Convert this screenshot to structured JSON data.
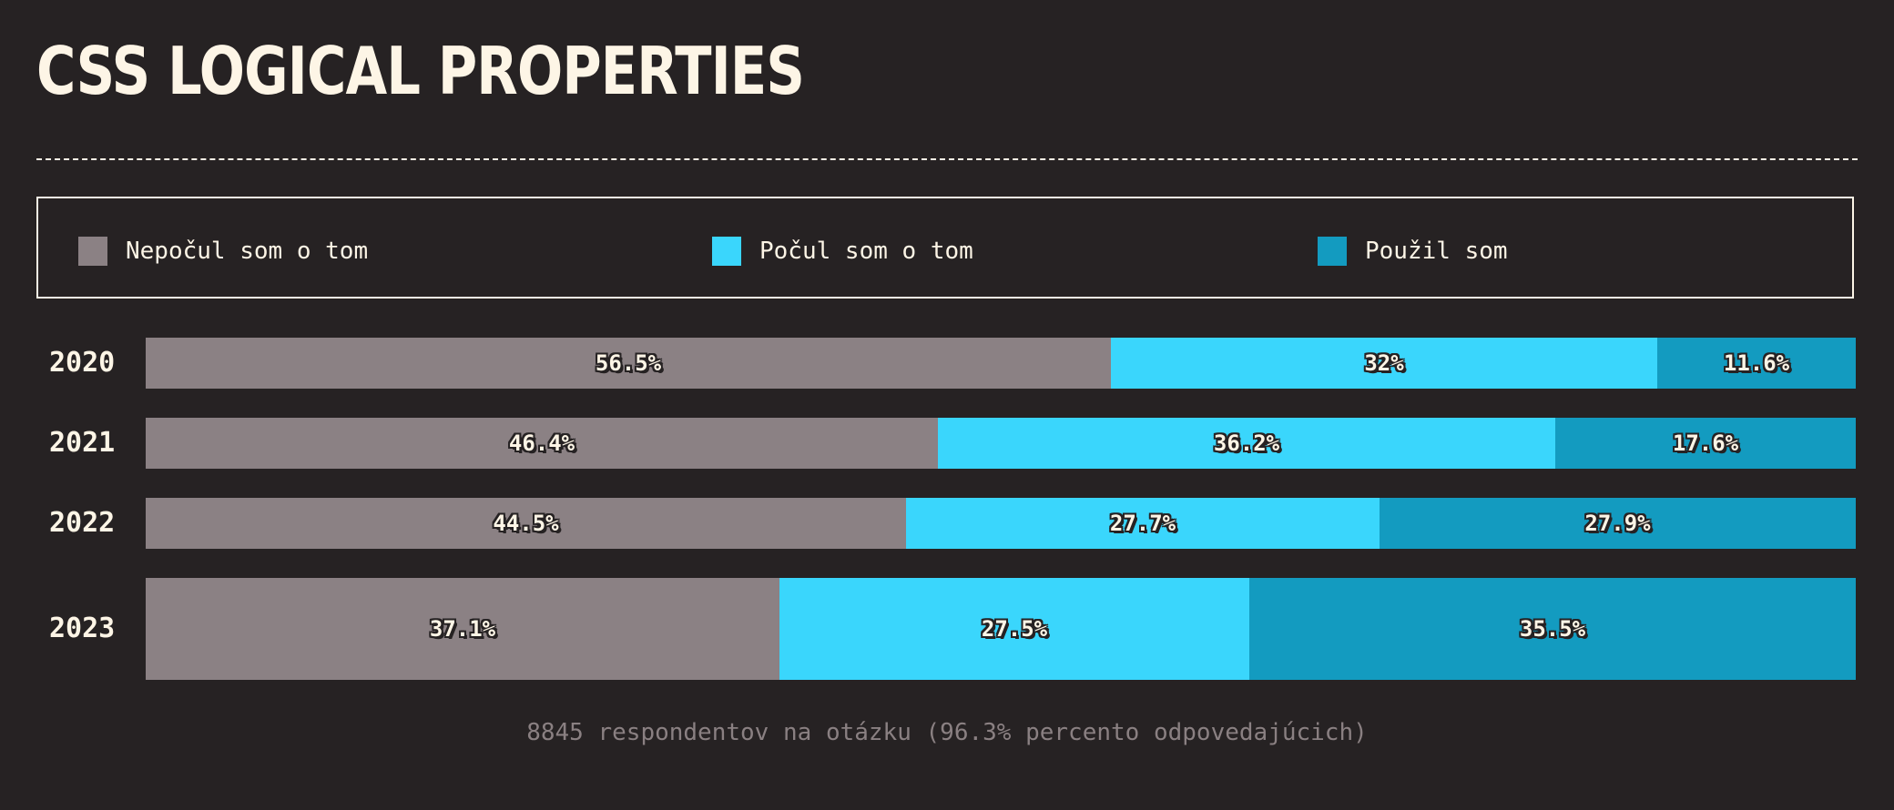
{
  "title": "CSS LOGICAL PROPERTIES",
  "footnote": "8845 respondentov na otázku (96.3% percento odpovedajúcich)",
  "colors": {
    "background": "#262223",
    "text": "#fdf5e6",
    "never_heard": "#8b8184",
    "heard": "#3ad6fc",
    "used": "#139bc0"
  },
  "chart_data": {
    "type": "bar",
    "orientation": "horizontal",
    "stacked": true,
    "normalized": true,
    "title": "CSS LOGICAL PROPERTIES",
    "legend_position": "top",
    "categories": [
      "2020",
      "2021",
      "2022",
      "2023"
    ],
    "series": [
      {
        "name": "Nepočul som o tom",
        "color": "#8b8184",
        "values": [
          56.5,
          46.4,
          44.5,
          37.1
        ],
        "labels": [
          "56.5%",
          "46.4%",
          "44.5%",
          "37.1%"
        ]
      },
      {
        "name": "Počul som o tom",
        "color": "#3ad6fc",
        "values": [
          32,
          36.2,
          27.7,
          27.5
        ],
        "labels": [
          "32%",
          "36.2%",
          "27.7%",
          "27.5%"
        ]
      },
      {
        "name": "Použil som",
        "color": "#139bc0",
        "values": [
          11.6,
          17.6,
          27.9,
          35.5
        ],
        "labels": [
          "11.6%",
          "17.6%",
          "27.9%",
          "35.5%"
        ]
      }
    ]
  }
}
